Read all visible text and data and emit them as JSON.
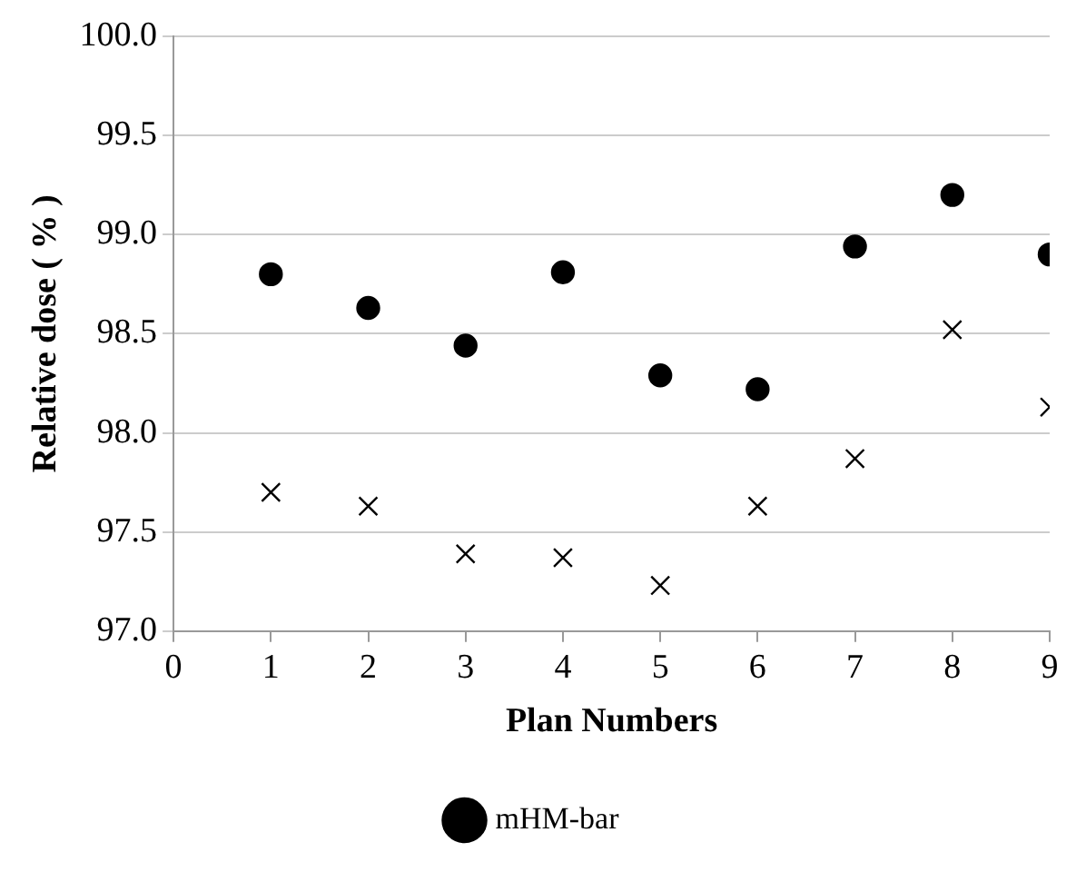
{
  "chart_data": {
    "type": "scatter",
    "xlabel": "Plan Numbers",
    "ylabel": "Relative dose ( % )",
    "xlim": [
      0,
      9
    ],
    "xticks": [
      0,
      1,
      2,
      3,
      4,
      5,
      6,
      7,
      8,
      9
    ],
    "ylim": [
      97.0,
      100.0
    ],
    "yticks": [
      {
        "value": 97.0,
        "label": "97.0"
      },
      {
        "value": 97.5,
        "label": "97.5"
      },
      {
        "value": 98.0,
        "label": "98.0"
      },
      {
        "value": 98.5,
        "label": "98.5"
      },
      {
        "value": 99.0,
        "label": "99.0"
      },
      {
        "value": 99.5,
        "label": "99.5"
      },
      {
        "value": 100.0,
        "label": "100.0"
      }
    ],
    "grid": "y",
    "legend": "bottom",
    "x": [
      1,
      2,
      3,
      4,
      5,
      6,
      7,
      8,
      9
    ],
    "series": [
      {
        "name": "mHM-bar",
        "color": "#000000",
        "marker": "circle",
        "values": [
          98.8,
          98.63,
          98.44,
          98.81,
          98.29,
          98.22,
          98.94,
          99.2,
          98.9
        ]
      },
      {
        "color": "#000000",
        "marker": "cross",
        "values": [
          97.7,
          97.63,
          97.39,
          97.37,
          97.23,
          97.63,
          97.87,
          98.52,
          98.13
        ]
      }
    ]
  }
}
